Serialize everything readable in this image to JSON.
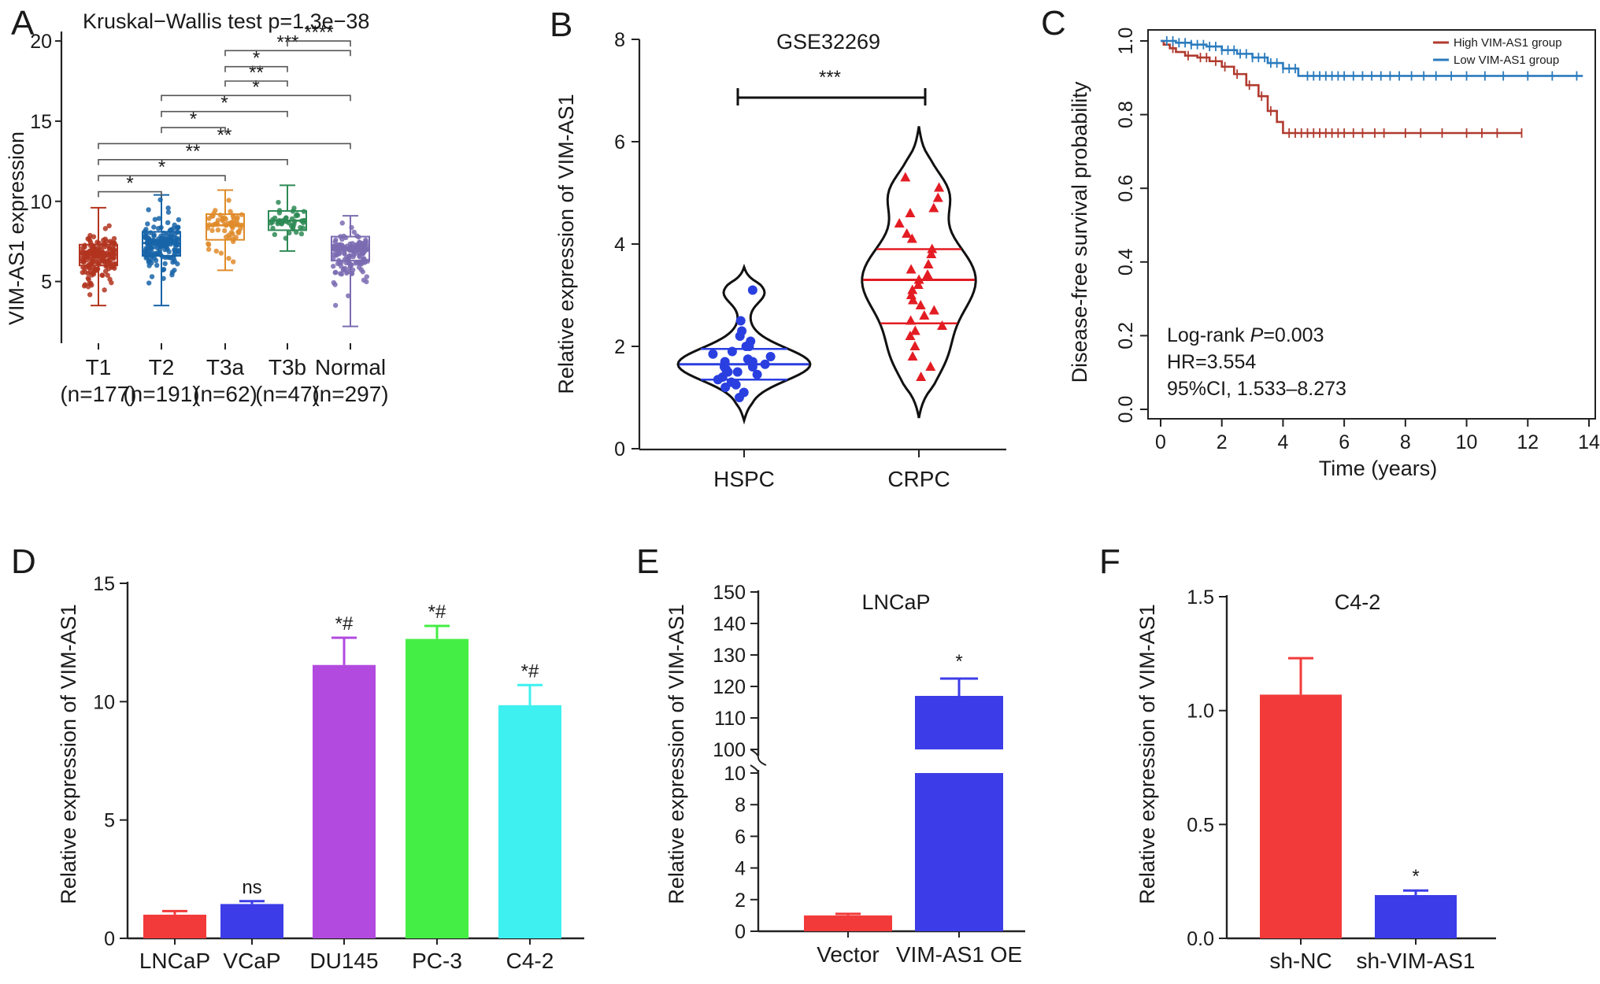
{
  "figure": {
    "panel_labels": [
      "A",
      "B",
      "C",
      "D",
      "E",
      "F"
    ]
  },
  "chart_data": [
    {
      "panel": "A",
      "type": "box",
      "title": "Kruskal−Wallis test p=1.3e−38",
      "ylabel": "VIM-AS1 expression",
      "ylim": [
        1.2,
        20.2
      ],
      "yticks": [
        5,
        10,
        15,
        20
      ],
      "groups": [
        {
          "name": "T1",
          "n_label": "(n=177)",
          "color": "#b2341f",
          "q1": 6.0,
          "median": 6.7,
          "q3": 7.3,
          "whisker_low": 3.5,
          "whisker_high": 9.6,
          "point_min": 3.0,
          "point_max": 9.6
        },
        {
          "name": "T2",
          "n_label": "(n=191)",
          "color": "#1764a8",
          "q1": 6.6,
          "median": 7.4,
          "q3": 8.1,
          "whisker_low": 3.5,
          "whisker_high": 10.4,
          "point_min": 3.5,
          "point_max": 10.4
        },
        {
          "name": "T3a",
          "n_label": "(n=62)",
          "color": "#e08b2a",
          "q1": 7.6,
          "median": 8.5,
          "q3": 9.2,
          "whisker_low": 5.7,
          "whisker_high": 10.7,
          "point_min": 4.6,
          "point_max": 10.7
        },
        {
          "name": "T3b",
          "n_label": "(n=47)",
          "color": "#2e8a55",
          "q1": 8.2,
          "median": 8.8,
          "q3": 9.4,
          "whisker_low": 6.9,
          "whisker_high": 11.0,
          "point_min": 6.9,
          "point_max": 11.0
        },
        {
          "name": "Normal",
          "n_label": "(n=297)",
          "color": "#7b6bb1",
          "q1": 6.3,
          "median": 7.0,
          "q3": 7.8,
          "whisker_low": 2.2,
          "whisker_high": 9.1,
          "point_min": 2.2,
          "point_max": 9.1
        }
      ],
      "comparisons": [
        {
          "from": 0,
          "to": 1,
          "label": "*",
          "y": 10.6
        },
        {
          "from": 0,
          "to": 2,
          "label": "*",
          "y": 11.6
        },
        {
          "from": 0,
          "to": 3,
          "label": "**",
          "y": 12.6
        },
        {
          "from": 0,
          "to": 4,
          "label": "**",
          "y": 13.6
        },
        {
          "from": 1,
          "to": 2,
          "label": "*",
          "y": 14.6
        },
        {
          "from": 1,
          "to": 3,
          "label": "*",
          "y": 15.6
        },
        {
          "from": 1,
          "to": 4,
          "label": "*",
          "y": 16.6
        },
        {
          "from": 2,
          "to": 3,
          "label": "**",
          "y": 17.5
        },
        {
          "from": 2,
          "to": 3,
          "label": "*",
          "y": 18.4
        },
        {
          "from": 2,
          "to": 4,
          "label": "***",
          "y": 19.4
        },
        {
          "from": 3,
          "to": 4,
          "label": "****",
          "y": 20.0
        }
      ]
    },
    {
      "panel": "B",
      "type": "violin",
      "title": "GSE32269",
      "ylabel": "Relative expression of VIM-AS1",
      "ylim": [
        0,
        8
      ],
      "yticks": [
        0,
        2,
        4,
        6,
        8
      ],
      "significance": "***",
      "groups": [
        {
          "name": "HSPC",
          "color": "#2a3fe0",
          "marker": "circle",
          "min": 0.55,
          "max": 3.55,
          "median": 1.65,
          "q1": 1.35,
          "q3": 1.95,
          "points": [
            3.1,
            2.5,
            2.3,
            2.2,
            2.1,
            2.0,
            2.0,
            1.9,
            1.85,
            1.8,
            1.75,
            1.7,
            1.7,
            1.65,
            1.6,
            1.6,
            1.55,
            1.5,
            1.5,
            1.45,
            1.4,
            1.35,
            1.3,
            1.25,
            1.2,
            1.1,
            1.0
          ]
        },
        {
          "name": "CRPC",
          "color": "#e31c23",
          "marker": "triangle",
          "min": 0.6,
          "max": 6.3,
          "median": 3.3,
          "q1": 2.45,
          "q3": 3.9,
          "points": [
            5.3,
            5.1,
            4.9,
            4.7,
            4.6,
            4.4,
            4.2,
            4.1,
            3.9,
            3.8,
            3.6,
            3.5,
            3.4,
            3.3,
            3.2,
            3.1,
            3.0,
            2.9,
            2.8,
            2.7,
            2.6,
            2.5,
            2.4,
            2.3,
            2.2,
            2.0,
            1.8,
            1.6,
            1.4
          ]
        }
      ]
    },
    {
      "panel": "C",
      "type": "line",
      "subtype": "kaplan-meier",
      "xlabel": "Time (years)",
      "ylabel": "Disease-free survival probability",
      "xlim": [
        0,
        14
      ],
      "ylim": [
        0,
        1
      ],
      "xticks": [
        0,
        2,
        4,
        6,
        8,
        10,
        12,
        14
      ],
      "yticks": [
        "0.0",
        "0.2",
        "0.4",
        "0.6",
        "0.8",
        "1.0"
      ],
      "legend": {
        "position": "top-right"
      },
      "annotations": [
        "Log-rank ",
        "P",
        "=0.003",
        "HR=3.554",
        "95%CI, 1.533–8.273"
      ],
      "series": [
        {
          "name": "High VIM-AS1 group",
          "color": "#b03a2e",
          "x": [
            0,
            0.1,
            0.3,
            0.5,
            0.8,
            1.2,
            1.6,
            2.0,
            2.4,
            2.8,
            3.2,
            3.5,
            3.8,
            4.0,
            11.8
          ],
          "y": [
            1.0,
            0.99,
            0.98,
            0.97,
            0.96,
            0.955,
            0.945,
            0.93,
            0.91,
            0.88,
            0.85,
            0.81,
            0.78,
            0.75,
            0.75
          ],
          "censor_x": [
            0.4,
            0.9,
            1.3,
            1.5,
            1.8,
            2.1,
            2.5,
            2.9,
            3.3,
            3.6,
            4.2,
            4.4,
            4.6,
            4.8,
            5.0,
            5.2,
            5.4,
            5.6,
            5.8,
            6.0,
            6.3,
            6.6,
            7.0,
            7.3,
            8.0,
            8.5,
            9.2,
            10.0,
            10.5,
            11.0,
            11.8
          ]
        },
        {
          "name": "Low VIM-AS1 group",
          "color": "#2b7bbd",
          "x": [
            0,
            0.5,
            1.0,
            1.5,
            2.0,
            2.5,
            3.0,
            3.5,
            4.0,
            4.5,
            13.8
          ],
          "y": [
            1.0,
            0.995,
            0.99,
            0.985,
            0.975,
            0.965,
            0.955,
            0.94,
            0.925,
            0.905,
            0.905
          ],
          "censor_x": [
            0.2,
            0.4,
            0.6,
            0.8,
            1.0,
            1.2,
            1.4,
            1.6,
            1.8,
            2.0,
            2.2,
            2.4,
            2.6,
            2.8,
            3.0,
            3.2,
            3.4,
            3.6,
            3.8,
            4.0,
            4.2,
            4.4,
            4.8,
            5.0,
            5.2,
            5.4,
            5.6,
            5.8,
            6.0,
            6.3,
            6.6,
            6.9,
            7.2,
            7.5,
            7.8,
            8.2,
            8.6,
            9.0,
            9.5,
            10.0,
            10.6,
            11.2,
            12.0,
            12.8,
            13.6
          ]
        }
      ]
    },
    {
      "panel": "D",
      "type": "bar",
      "ylabel": "Relative expression of VIM-AS1",
      "ylim": [
        0,
        15
      ],
      "yticks": [
        0,
        5,
        10,
        15
      ],
      "categories": [
        "LNCaP",
        "VCaP",
        "DU145",
        "PC-3",
        "C4-2"
      ],
      "values": [
        1.0,
        1.45,
        11.55,
        12.65,
        9.85
      ],
      "errors": [
        0.15,
        0.12,
        1.15,
        0.55,
        0.85
      ],
      "colors": [
        "#f23a3a",
        "#3c3ce8",
        "#b24ae0",
        "#44ee44",
        "#3ef0f0"
      ],
      "labels": [
        "",
        "ns",
        "*#",
        "*#",
        "*#"
      ]
    },
    {
      "panel": "E",
      "type": "bar",
      "subtype": "broken-axis",
      "title": "LNCaP",
      "ylabel": "Relative expression of VIM-AS1",
      "lower_ylim": [
        0,
        10
      ],
      "lower_yticks": [
        0,
        2,
        4,
        6,
        8,
        10
      ],
      "upper_ylim": [
        100,
        150
      ],
      "upper_yticks": [
        100,
        110,
        120,
        130,
        140,
        150
      ],
      "categories": [
        "Vector",
        "VIM-AS1 OE"
      ],
      "values": [
        1.0,
        117.0
      ],
      "errors": [
        0.1,
        5.5
      ],
      "colors": [
        "#f23a3a",
        "#3c3ce8"
      ],
      "labels": [
        "",
        "*"
      ]
    },
    {
      "panel": "F",
      "type": "bar",
      "title": "C4-2",
      "ylabel": "Relative expression of VIM-AS1",
      "ylim": [
        0,
        1.5
      ],
      "yticks": [
        "0.0",
        "0.5",
        "1.0",
        "1.5"
      ],
      "categories": [
        "sh-NC",
        "sh-VIM-AS1"
      ],
      "values": [
        1.07,
        0.19
      ],
      "errors": [
        0.16,
        0.02
      ],
      "colors": [
        "#f23a3a",
        "#3c3ce8"
      ],
      "labels": [
        "",
        "*"
      ]
    }
  ]
}
